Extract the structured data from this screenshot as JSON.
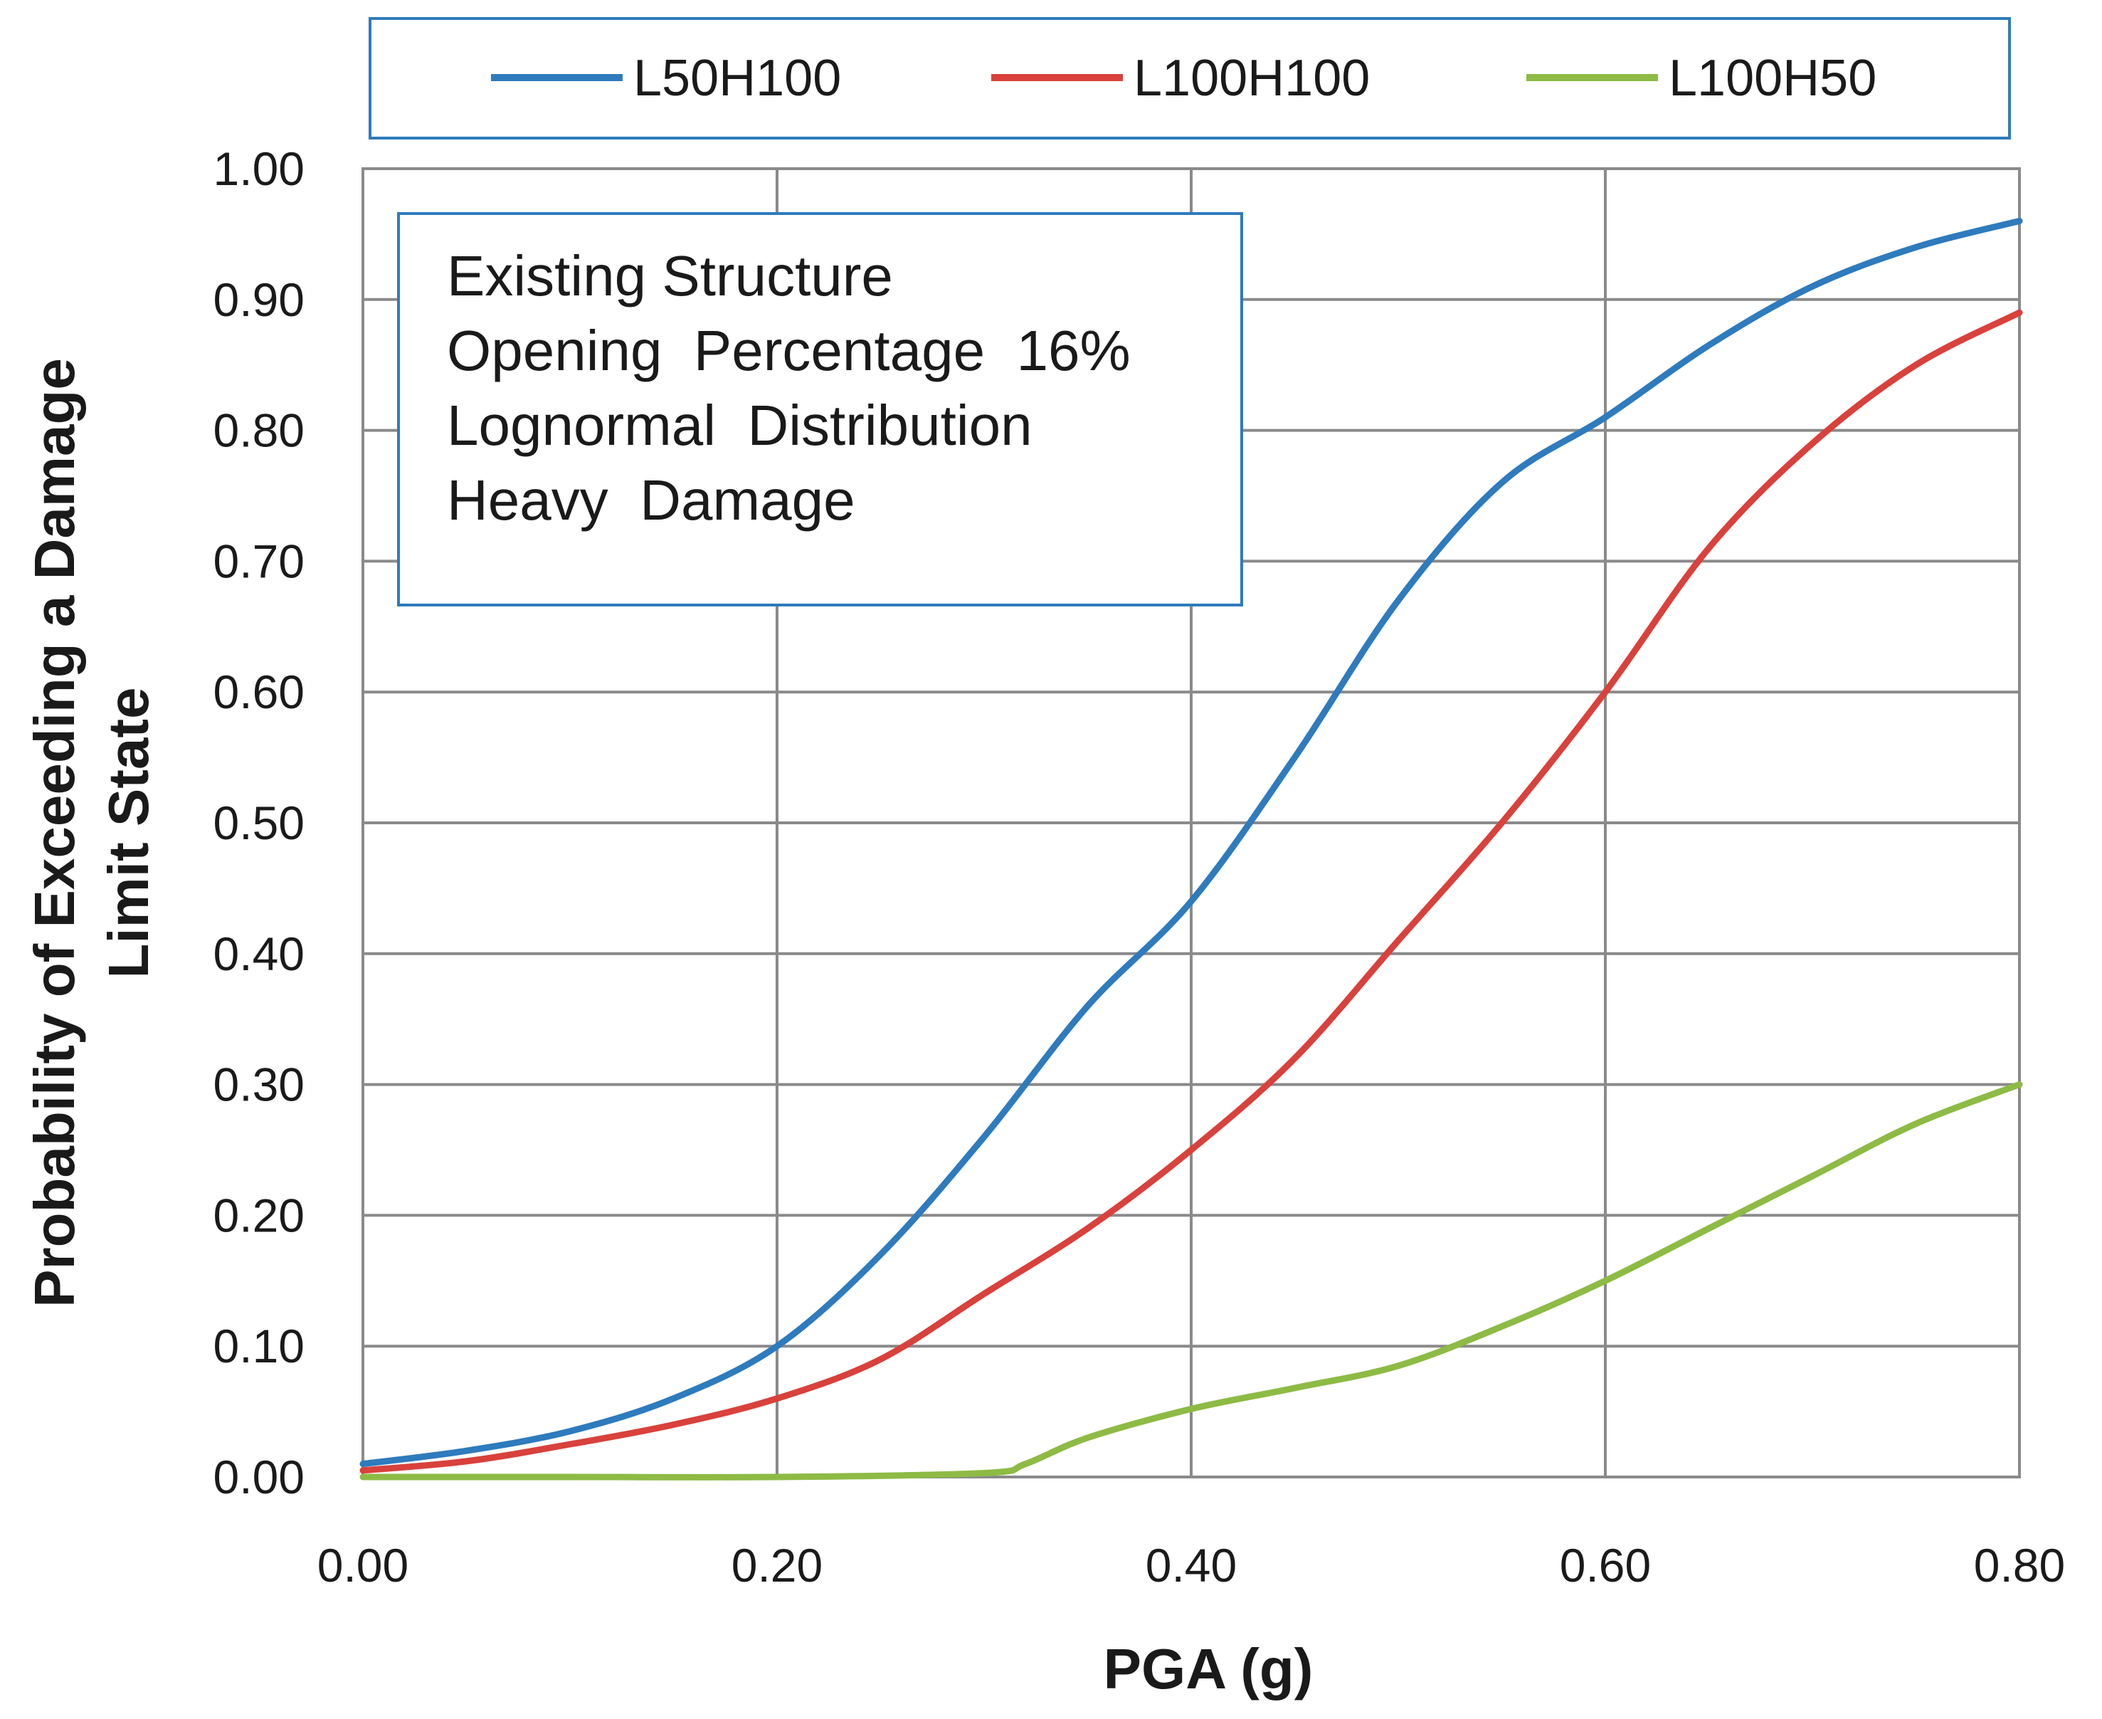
{
  "chart_data": {
    "type": "line",
    "title": "",
    "xlabel": "PGA (g)",
    "ylabel_lines": [
      "Probability of Exceeding a Damage",
      "Limit State"
    ],
    "xlim": [
      0,
      0.8
    ],
    "ylim": [
      0,
      1.0
    ],
    "x_ticks": [
      "0.00",
      "0.20",
      "0.40",
      "0.60",
      "0.80"
    ],
    "y_ticks": [
      "0.00",
      "0.10",
      "0.20",
      "0.30",
      "0.40",
      "0.50",
      "0.60",
      "0.70",
      "0.80",
      "0.90",
      "1.00"
    ],
    "grid": true,
    "legend_position": "top",
    "annotation_lines": [
      "Existing Structure",
      "Opening  Percentage  16%",
      "Lognormal  Distribution",
      "Heavy  Damage"
    ],
    "series": [
      {
        "name": "L50H100",
        "color": "#2e7bbd",
        "x": [
          0,
          0.05,
          0.1,
          0.15,
          0.2,
          0.25,
          0.3,
          0.35,
          0.4,
          0.45,
          0.5,
          0.55,
          0.6,
          0.65,
          0.7,
          0.75,
          0.8
        ],
        "y": [
          0.01,
          0.02,
          0.035,
          0.06,
          0.1,
          0.17,
          0.26,
          0.36,
          0.44,
          0.55,
          0.67,
          0.76,
          0.81,
          0.865,
          0.91,
          0.94,
          0.96
        ]
      },
      {
        "name": "L100H100",
        "color": "#d9413c",
        "x": [
          0,
          0.05,
          0.1,
          0.15,
          0.2,
          0.25,
          0.3,
          0.35,
          0.4,
          0.45,
          0.5,
          0.55,
          0.6,
          0.65,
          0.7,
          0.75,
          0.8
        ],
        "y": [
          0.005,
          0.012,
          0.025,
          0.04,
          0.06,
          0.09,
          0.14,
          0.19,
          0.25,
          0.32,
          0.41,
          0.5,
          0.6,
          0.71,
          0.79,
          0.85,
          0.89
        ]
      },
      {
        "name": "L100H50",
        "color": "#8dbb45",
        "x": [
          0,
          0.1,
          0.2,
          0.3,
          0.32,
          0.35,
          0.4,
          0.45,
          0.5,
          0.55,
          0.6,
          0.65,
          0.7,
          0.75,
          0.8
        ],
        "y": [
          0,
          0,
          0,
          0.003,
          0.01,
          0.03,
          0.052,
          0.068,
          0.085,
          0.115,
          0.15,
          0.19,
          0.23,
          0.27,
          0.3
        ]
      }
    ]
  }
}
